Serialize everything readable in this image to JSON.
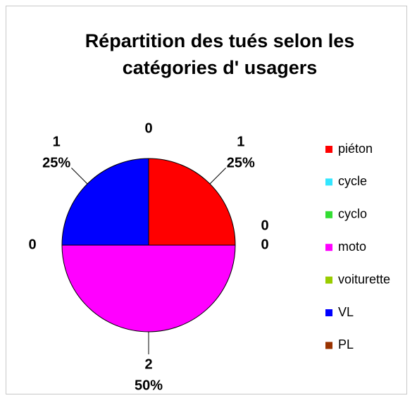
{
  "chart_data": {
    "type": "pie",
    "title": [
      "Répartition des tués selon les",
      "catégories d' usagers"
    ],
    "categories": [
      "piéton",
      "cycle",
      "cyclo",
      "moto",
      "voiturette",
      "VL",
      "PL"
    ],
    "values": [
      1,
      0,
      0,
      2,
      0,
      1,
      0
    ],
    "percent_labels": [
      "25%",
      null,
      null,
      "50%",
      null,
      "25%",
      null
    ],
    "colors": [
      "#ff0000",
      "#33e6ff",
      "#33dd33",
      "#ff00ff",
      "#99cc00",
      "#0000ff",
      "#993300"
    ]
  }
}
